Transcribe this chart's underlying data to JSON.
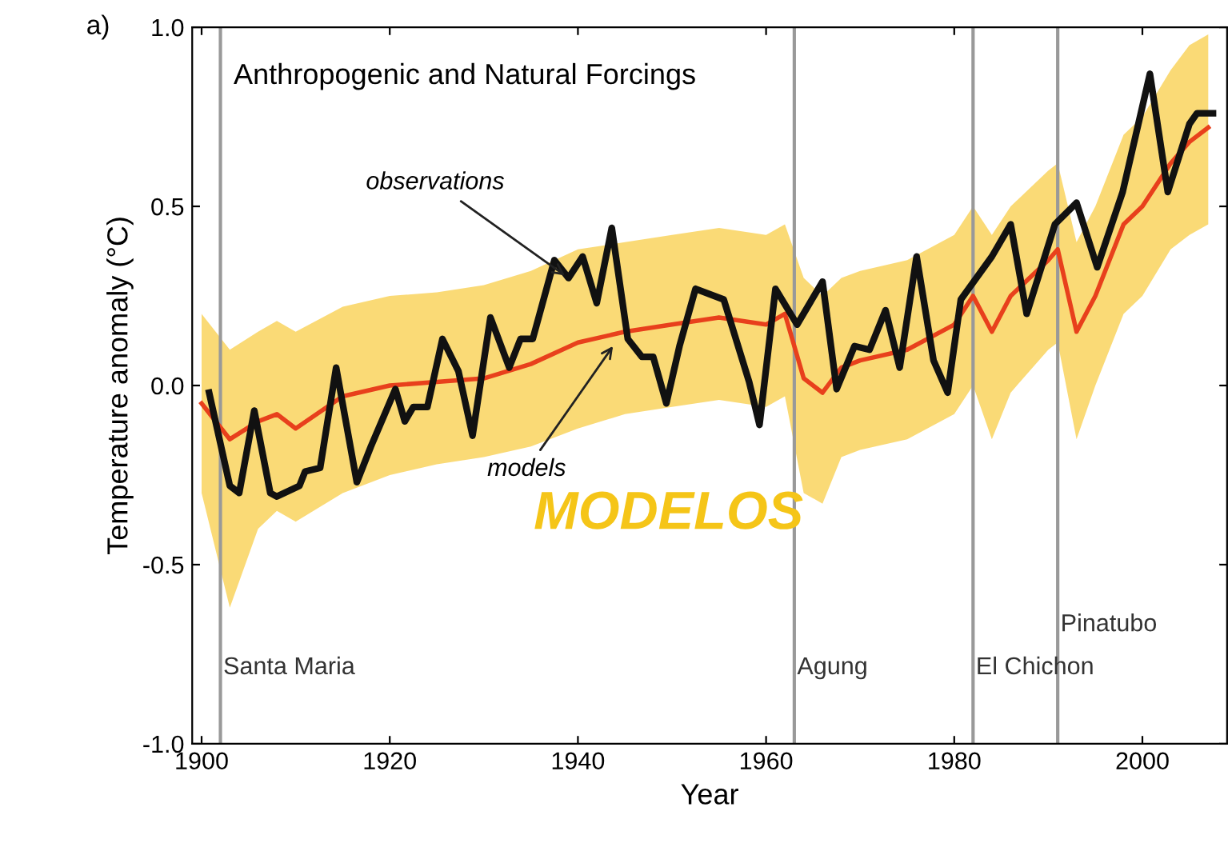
{
  "chart_data": {
    "type": "line",
    "title": "Anthropogenic and Natural Forcings",
    "xlabel": "Year",
    "ylabel": "Temperature anomaly (°C)",
    "series": [
      {
        "color": "#e8401c",
        "x": [
          1900,
          1903,
          1906,
          1908,
          1910,
          1915,
          1920,
          1925,
          1930,
          1935,
          1940,
          1945,
          1950,
          1955,
          1960,
          1962,
          1964,
          1966,
          1968,
          1970,
          1975,
          1980,
          1982,
          1984,
          1986,
          1990,
          1991,
          1993,
          1995,
          1998,
          2000,
          2003,
          2005,
          2007
        ],
        "values": [
          -0.05,
          -0.15,
          -0.1,
          -0.08,
          -0.12,
          -0.03,
          0.0,
          0.01,
          0.02,
          0.06,
          0.12,
          0.15,
          0.17,
          0.19,
          0.17,
          0.2,
          0.02,
          -0.02,
          0.05,
          0.07,
          0.1,
          0.17,
          0.25,
          0.15,
          0.25,
          0.35,
          0.38,
          0.15,
          0.25,
          0.45,
          0.5,
          0.62,
          0.68,
          0.72
        ],
        "lower": [
          -0.3,
          -0.62,
          -0.4,
          -0.35,
          -0.38,
          -0.3,
          -0.25,
          -0.22,
          -0.2,
          -0.17,
          -0.12,
          -0.08,
          -0.06,
          -0.04,
          -0.06,
          -0.03,
          -0.3,
          -0.33,
          -0.2,
          -0.18,
          -0.15,
          -0.08,
          0.0,
          -0.15,
          -0.02,
          0.1,
          0.12,
          -0.15,
          0.0,
          0.2,
          0.25,
          0.38,
          0.42,
          0.45
        ],
        "upper": [
          0.2,
          0.1,
          0.15,
          0.18,
          0.15,
          0.22,
          0.25,
          0.26,
          0.28,
          0.32,
          0.38,
          0.4,
          0.42,
          0.44,
          0.42,
          0.45,
          0.3,
          0.25,
          0.3,
          0.32,
          0.35,
          0.42,
          0.5,
          0.42,
          0.5,
          0.6,
          0.62,
          0.4,
          0.5,
          0.7,
          0.75,
          0.88,
          0.95,
          0.98
        ]
      },
      {
        "color": "#111111",
        "x": [
          1900.8,
          1903,
          1904,
          1905.6,
          1907.3,
          1908,
          1910.4,
          1911,
          1912.6,
          1914.3,
          1916.5,
          1918,
          1920.6,
          1921.6,
          1922.5,
          1924,
          1925.6,
          1927.3,
          1928.8,
          1930.7,
          1932.7,
          1933.9,
          1935.2,
          1937.5,
          1939,
          1940.5,
          1942,
          1943.6,
          1945.3,
          1946.8,
          1948,
          1949.4,
          1950.8,
          1952.5,
          1955.5,
          1958.2,
          1959.3,
          1961,
          1963.3,
          1966,
          1967.5,
          1969.4,
          1971,
          1972.7,
          1974.2,
          1976,
          1977.8,
          1979.3,
          1980.7,
          1984,
          1986,
          1987.7,
          1990.7,
          1993,
          1995.2,
          1997.9,
          2000.8,
          2002.7,
          2005,
          2005.8,
          2007.5
        ],
        "values": [
          -0.02,
          -0.28,
          -0.3,
          -0.07,
          -0.3,
          -0.31,
          -0.28,
          -0.24,
          -0.23,
          0.05,
          -0.27,
          -0.17,
          -0.01,
          -0.1,
          -0.06,
          -0.06,
          0.13,
          0.04,
          -0.14,
          0.19,
          0.05,
          0.13,
          0.13,
          0.35,
          0.3,
          0.36,
          0.23,
          0.44,
          0.13,
          0.08,
          0.08,
          -0.05,
          0.11,
          0.27,
          0.24,
          0.01,
          -0.11,
          0.27,
          0.17,
          0.29,
          -0.01,
          0.11,
          0.1,
          0.21,
          0.05,
          0.36,
          0.07,
          -0.02,
          0.24,
          0.36,
          0.45,
          0.2,
          0.45,
          0.51,
          0.33,
          0.54,
          0.87,
          0.54,
          0.73,
          0.76,
          0.76
        ]
      }
    ],
    "xlim": [
      1899,
      2009
    ],
    "xticks": [
      1900,
      1920,
      1940,
      1960,
      1980,
      2000
    ],
    "ylim": [
      -1.0,
      1.0
    ],
    "yticks": [
      {
        "value": -1.0,
        "label": "-1.0"
      },
      {
        "value": -0.5,
        "label": "-0.5"
      },
      {
        "value": 0.0,
        "label": "0.0"
      },
      {
        "value": 0.5,
        "label": "0.5"
      },
      {
        "value": 1.0,
        "label": "1.0"
      }
    ],
    "ref_lines": [
      {
        "axis": "x",
        "value": 1902,
        "label": "Santa Maria",
        "color": "#999999"
      },
      {
        "axis": "x",
        "value": 1963,
        "label": "Agung",
        "color": "#999999"
      },
      {
        "axis": "x",
        "value": 1982,
        "label": "El Chichon",
        "color": "#999999"
      },
      {
        "axis": "x",
        "value": 1991,
        "label": "Pinatubo",
        "color": "#999999"
      }
    ],
    "annotations": [
      "a)",
      {
        "text": "observations",
        "x": 1939,
        "y": 0.3
      },
      {
        "text": "models",
        "x": 1944,
        "y": 0.12
      },
      "MODELOS"
    ],
    "grid": false,
    "legend": false,
    "marker": "none",
    "line_style": "solid"
  }
}
